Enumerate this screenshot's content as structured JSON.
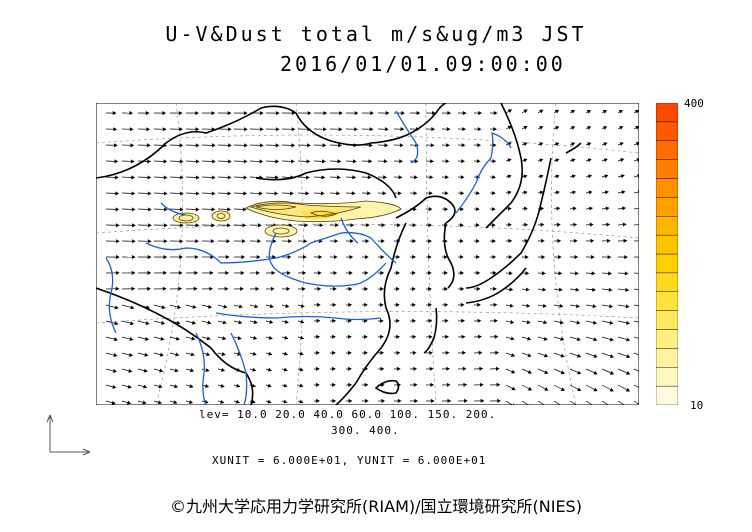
{
  "header": {
    "title_line1": "U-V&Dust total m/s&ug/m3 JST",
    "title_line2": "2016/01/01.09:00:00"
  },
  "colorbar": {
    "max_label": "400",
    "min_label": "10",
    "colors": [
      "#fffbe0",
      "#fff7c0",
      "#fff2a0",
      "#ffee80",
      "#ffe860",
      "#ffe23c",
      "#ffda1a",
      "#ffd000",
      "#ffc400",
      "#ffb400",
      "#ffa200",
      "#ff9000",
      "#ff7e00",
      "#ff6c00",
      "#ff5a00",
      "#ff4800"
    ]
  },
  "legend": {
    "lev_line1": "lev= 10.0 20.0 40.0 60.0 100. 150. 200.",
    "lev_line2": "300. 400.",
    "unit_line": "XUNIT = 6.000E+01, YUNIT = 6.000E+01"
  },
  "footer": {
    "copyright": "©九州大学応用力学研究所(RIAM)/国立環境研究所(NIES)"
  },
  "icons": {
    "axes": "axes-orientation-icon"
  }
}
